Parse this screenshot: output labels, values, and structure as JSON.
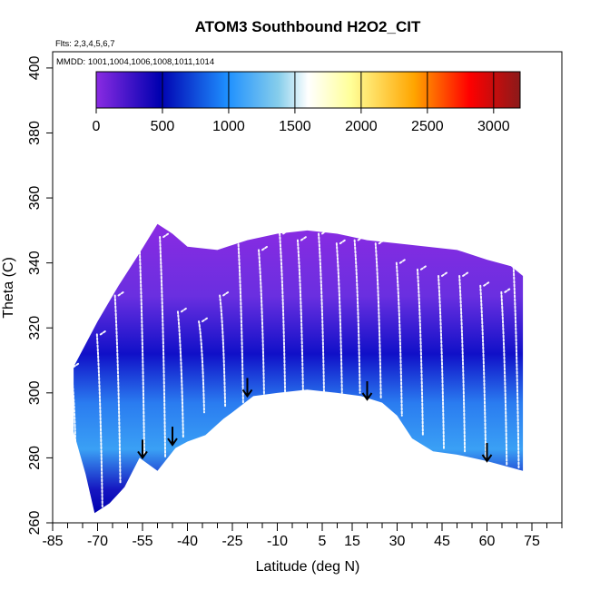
{
  "chart_data": {
    "type": "heatmap",
    "title": "ATOM3 Southbound H2O2_CIT",
    "flights_note": "Flts: 2,3,4,5,6,7",
    "dates_note": "MMDD: 1001,1004,1006,1008,1011,1014",
    "xlabel": "Latitude (deg N)",
    "ylabel": "Theta (C)",
    "xlim": [
      -85,
      85
    ],
    "ylim": [
      260,
      405
    ],
    "x_ticks": [
      -85,
      -70,
      -55,
      -40,
      -25,
      -10,
      5,
      15,
      30,
      45,
      60,
      75
    ],
    "x_minor_step": 5,
    "y_ticks": [
      260,
      280,
      300,
      320,
      340,
      360,
      380,
      400
    ],
    "colorbar": {
      "range": [
        0,
        3200
      ],
      "ticks": [
        0,
        500,
        1000,
        1500,
        2000,
        2500,
        3000
      ],
      "colors": [
        "#8a2be2",
        "#0000b0",
        "#1e90ff",
        "#87ceeb",
        "#ffffff",
        "#ffff99",
        "#ffa500",
        "#ff0000",
        "#8b1a1a"
      ]
    },
    "coverage_upper": [
      [
        -78,
        308
      ],
      [
        -70,
        322
      ],
      [
        -63,
        333
      ],
      [
        -56,
        343
      ],
      [
        -50,
        352
      ],
      [
        -45,
        349
      ],
      [
        -40,
        345
      ],
      [
        -30,
        344
      ],
      [
        -20,
        347
      ],
      [
        -10,
        349
      ],
      [
        0,
        350
      ],
      [
        10,
        349
      ],
      [
        20,
        347
      ],
      [
        30,
        346
      ],
      [
        40,
        345
      ],
      [
        50,
        344
      ],
      [
        60,
        341
      ],
      [
        68,
        339
      ],
      [
        72,
        336
      ]
    ],
    "coverage_lower": [
      [
        -78,
        288
      ],
      [
        -74,
        275
      ],
      [
        -71,
        263
      ],
      [
        -66,
        266
      ],
      [
        -61,
        271
      ],
      [
        -56,
        280
      ],
      [
        -50,
        276
      ],
      [
        -44,
        283
      ],
      [
        -40,
        285
      ],
      [
        -34,
        287
      ],
      [
        -28,
        292
      ],
      [
        -25,
        294
      ],
      [
        -18,
        299
      ],
      [
        -10,
        300
      ],
      [
        0,
        301
      ],
      [
        10,
        300
      ],
      [
        18,
        299
      ],
      [
        25,
        297
      ],
      [
        30,
        293
      ],
      [
        35,
        286
      ],
      [
        42,
        282
      ],
      [
        50,
        281
      ],
      [
        60,
        279
      ],
      [
        72,
        276
      ]
    ],
    "flight_tracks": [
      {
        "lat": -78,
        "bottom": 285,
        "top": 308
      },
      {
        "lat": -69,
        "bottom": 265,
        "top": 318
      },
      {
        "lat": -63,
        "bottom": 272,
        "top": 330
      },
      {
        "lat": -55,
        "bottom": 281,
        "top": 350
      },
      {
        "lat": -48,
        "bottom": 280,
        "top": 348
      },
      {
        "lat": -42,
        "bottom": 286,
        "top": 325
      },
      {
        "lat": -35,
        "bottom": 294,
        "top": 322
      },
      {
        "lat": -28,
        "bottom": 296,
        "top": 330
      },
      {
        "lat": -22,
        "bottom": 297,
        "top": 349
      },
      {
        "lat": -15,
        "bottom": 299,
        "top": 344
      },
      {
        "lat": -8,
        "bottom": 300,
        "top": 349
      },
      {
        "lat": -2,
        "bottom": 300,
        "top": 347
      },
      {
        "lat": 5,
        "bottom": 300,
        "top": 349
      },
      {
        "lat": 11,
        "bottom": 300,
        "top": 346
      },
      {
        "lat": 17,
        "bottom": 300,
        "top": 347
      },
      {
        "lat": 24,
        "bottom": 298,
        "top": 346
      },
      {
        "lat": 31,
        "bottom": 293,
        "top": 340
      },
      {
        "lat": 38,
        "bottom": 287,
        "top": 338
      },
      {
        "lat": 45,
        "bottom": 283,
        "top": 336
      },
      {
        "lat": 52,
        "bottom": 282,
        "top": 336
      },
      {
        "lat": 59,
        "bottom": 280,
        "top": 333
      },
      {
        "lat": 66,
        "bottom": 278,
        "top": 331
      },
      {
        "lat": 70,
        "bottom": 277,
        "top": 340
      }
    ],
    "profile_markers": [
      {
        "lat": -55,
        "theta": 280
      },
      {
        "lat": -45,
        "theta": 284
      },
      {
        "lat": -20,
        "theta": 299
      },
      {
        "lat": 20,
        "theta": 298
      },
      {
        "lat": 60,
        "theta": 279
      }
    ]
  }
}
